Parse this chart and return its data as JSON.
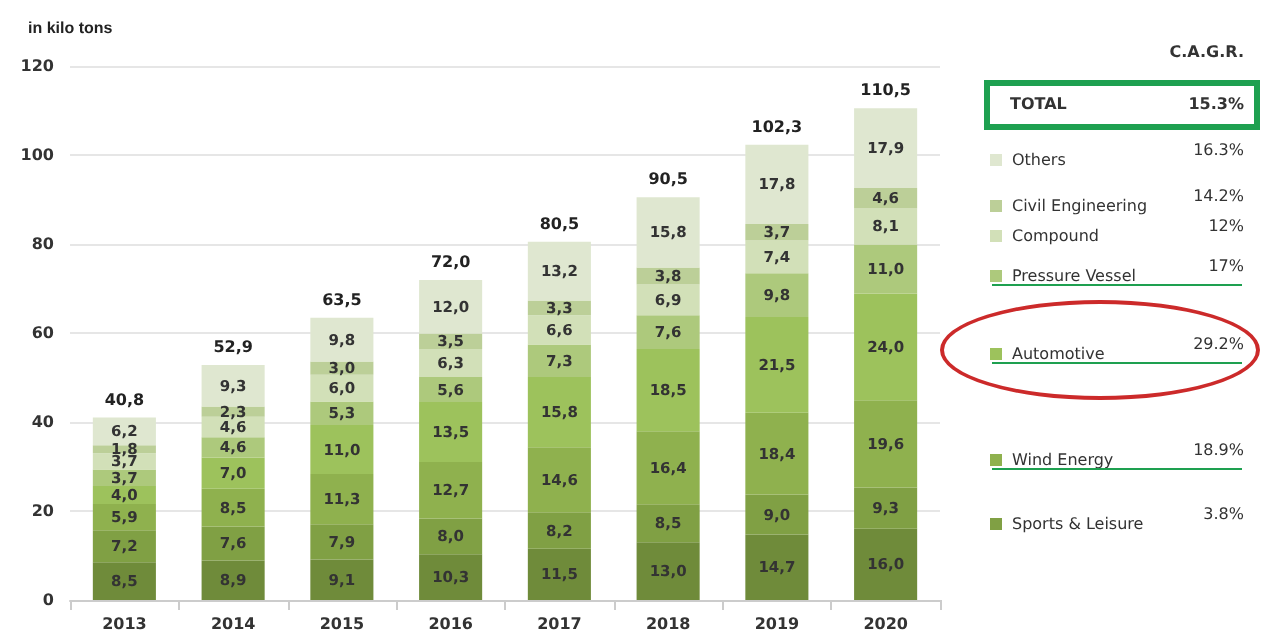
{
  "chart_data": {
    "type": "bar",
    "stacked": true,
    "ylabel": "in kilo tons",
    "categories": [
      "2013",
      "2014",
      "2015",
      "2016",
      "2017",
      "2018",
      "2019",
      "2020"
    ],
    "ylim": [
      0,
      120
    ],
    "yticks": [
      0,
      20,
      40,
      60,
      80,
      100,
      120
    ],
    "grid": "y",
    "legend": "right",
    "series": [
      {
        "color": "#6f8b3a",
        "values": [
          8.5,
          8.9,
          9.1,
          10.3,
          11.5,
          13.0,
          14.7,
          16.0
        ],
        "value_labels": [
          "8,5",
          "8,9",
          "9,1",
          "10,3",
          "11,5",
          "13,0",
          "14,7",
          "16,0"
        ]
      },
      {
        "name": "Sports & Leisure",
        "color": "#80a044",
        "values": [
          7.2,
          7.6,
          7.9,
          8.0,
          8.2,
          8.5,
          9.0,
          9.3
        ],
        "value_labels": [
          "7,2",
          "7,6",
          "7,9",
          "8,0",
          "8,2",
          "8,5",
          "9,0",
          "9,3"
        ]
      },
      {
        "name": "Wind Energy",
        "color": "#8fb14e",
        "values": [
          5.9,
          8.5,
          11.3,
          12.7,
          14.6,
          16.4,
          18.4,
          19.6
        ],
        "value_labels": [
          "5,9",
          "8,5",
          "11,3",
          "12,7",
          "14,6",
          "16,4",
          "18,4",
          "19,6"
        ]
      },
      {
        "name": "Automotive",
        "color": "#9dc25c",
        "values": [
          4.0,
          7.0,
          11.0,
          13.5,
          15.8,
          18.5,
          21.5,
          24.0
        ],
        "value_labels": [
          "4,0",
          "7,0",
          "11,0",
          "13,5",
          "15,8",
          "18,5",
          "21,5",
          "24,0"
        ]
      },
      {
        "name": "Pressure Vessel",
        "color": "#adc97c",
        "values": [
          3.7,
          4.6,
          5.3,
          5.6,
          7.3,
          7.6,
          9.8,
          11.0
        ],
        "value_labels": [
          "3,7",
          "4,6",
          "5,3",
          "5,6",
          "7,3",
          "7,6",
          "9,8",
          "11,0"
        ]
      },
      {
        "name": "Compound",
        "color": "#d2e0b8",
        "values": [
          3.7,
          4.6,
          6.0,
          6.3,
          6.6,
          6.9,
          7.4,
          8.1
        ],
        "value_labels": [
          "3,7",
          "4,6",
          "6,0",
          "6,3",
          "6,6",
          "6,9",
          "7,4",
          "8,1"
        ]
      },
      {
        "name": "Civil Engineering",
        "color": "#bccf98",
        "values": [
          1.8,
          2.3,
          3.0,
          3.5,
          3.3,
          3.8,
          3.7,
          4.6
        ],
        "value_labels": [
          "1,8",
          "2,3",
          "3,0",
          "3,5",
          "3,3",
          "3,8",
          "3,7",
          "4,6"
        ]
      },
      {
        "name": "Others",
        "color": "#dfe7d0",
        "values": [
          6.2,
          9.3,
          9.8,
          12.0,
          13.2,
          15.8,
          17.8,
          17.9
        ],
        "value_labels": [
          "6,2",
          "9,3",
          "9,8",
          "12,0",
          "13,2",
          "15,8",
          "17,8",
          "17,9"
        ]
      }
    ],
    "totals": [
      "40,8",
      "52,9",
      "63,5",
      "72,0",
      "80,5",
      "90,5",
      "102,3",
      "110,5"
    ],
    "annotations": [
      "C.A.G.R.",
      "TOTAL",
      "15.3%",
      "3.8%",
      "18.9%",
      "29.2%",
      "17%",
      "12%",
      "14.2%",
      "16.3%"
    ]
  }
}
